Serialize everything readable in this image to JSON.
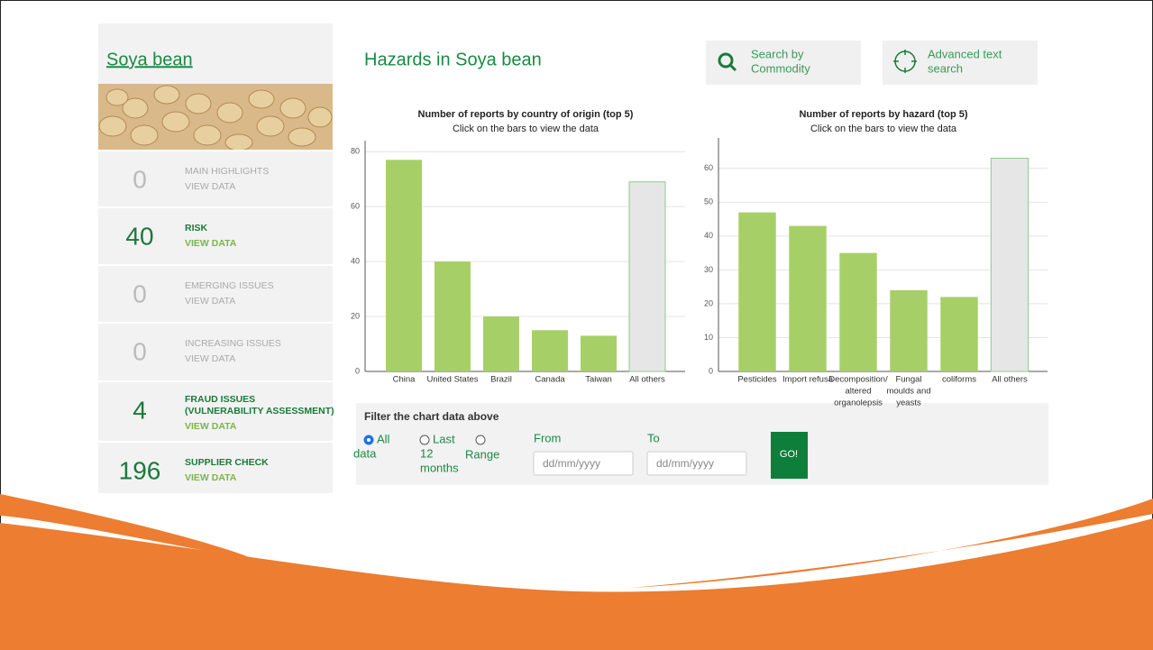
{
  "sidebar": {
    "title": "Soya bean",
    "rows": [
      {
        "count": 0,
        "label": [
          "MAIN HIGHLIGHTS"
        ],
        "link": "VIEW DATA"
      },
      {
        "count": 40,
        "label": [
          "RISK"
        ],
        "link": "VIEW DATA"
      },
      {
        "count": 0,
        "label": [
          "EMERGING ISSUES"
        ],
        "link": "VIEW DATA"
      },
      {
        "count": 0,
        "label": [
          "INCREASING ISSUES"
        ],
        "link": "VIEW DATA"
      },
      {
        "count": 4,
        "label": [
          "FRAUD ISSUES",
          "(VULNERABILITY ASSESSMENT)"
        ],
        "link": "VIEW DATA"
      },
      {
        "count": 196,
        "label": [
          "SUPPLIER CHECK"
        ],
        "link": "VIEW DATA"
      }
    ]
  },
  "header": {
    "title": "Hazards in Soya bean",
    "buttons": [
      [
        "Search by",
        "Commodity"
      ],
      [
        "Advanced text",
        "search"
      ]
    ]
  },
  "filter": {
    "title": "Filter the chart data above",
    "options": [
      [
        "All",
        "data"
      ],
      [
        "Last",
        "12",
        "months"
      ],
      [
        "Range"
      ]
    ],
    "from": "From",
    "to": "To",
    "placeholder": "dd/mm/yyyy",
    "button": "GO!"
  },
  "chart_data": [
    {
      "type": "bar",
      "title": "Number of reports by country of origin (top 5)",
      "subtitle": "Click on the bars to view the data",
      "categories": [
        [
          "China"
        ],
        [
          "United States"
        ],
        [
          "Brazil"
        ],
        [
          "Canada"
        ],
        [
          "Taiwan"
        ],
        [
          "All others"
        ]
      ],
      "values": [
        77,
        40,
        20,
        15,
        13,
        69
      ],
      "colors": [
        "#a6cf68",
        "#a6cf68",
        "#a6cf68",
        "#a6cf68",
        "#a6cf68",
        "#e6e6e6"
      ],
      "ylim": [
        0,
        84
      ],
      "yticks": [
        0,
        20,
        40,
        60,
        80
      ],
      "grid": true
    },
    {
      "type": "bar",
      "title": "Number of reports by hazard (top 5)",
      "subtitle": "Click on the bars to view the data",
      "categories": [
        [
          "Pesticides"
        ],
        [
          "Import refusa"
        ],
        [
          "Decomposition/",
          "altered",
          "organolepsis"
        ],
        [
          "Fungal",
          "moulds and",
          "yeasts"
        ],
        [
          "coliforms"
        ],
        [
          "All others"
        ]
      ],
      "values": [
        47,
        43,
        35,
        24,
        22,
        63
      ],
      "colors": [
        "#a6cf68",
        "#a6cf68",
        "#a6cf68",
        "#a6cf68",
        "#a6cf68",
        "#e6e6e6"
      ],
      "ylim": [
        0,
        69
      ],
      "yticks": [
        0,
        10,
        20,
        30,
        40,
        50,
        60
      ],
      "grid": true
    }
  ]
}
